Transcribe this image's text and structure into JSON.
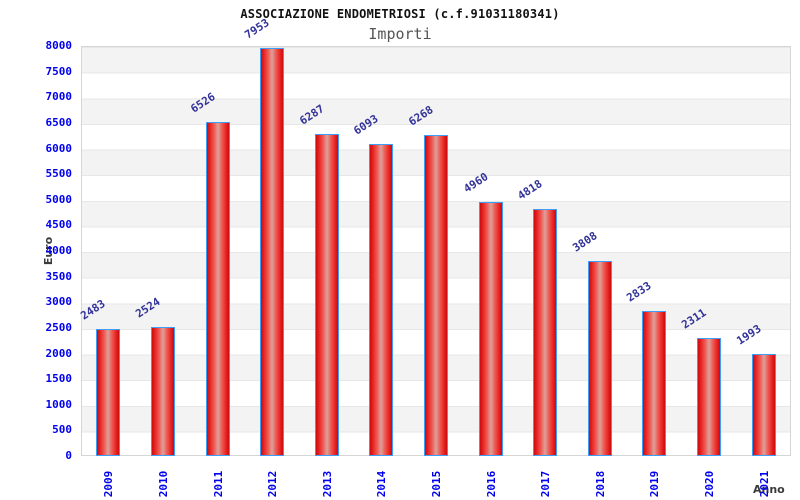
{
  "chart_data": {
    "type": "bar",
    "title": "ASSOCIAZIONE ENDOMETRIOSI (c.f.91031180341)",
    "subtitle": "Importi",
    "xlabel": "Anno",
    "ylabel": "Euro",
    "categories": [
      "2009",
      "2010",
      "2011",
      "2012",
      "2013",
      "2014",
      "2015",
      "2016",
      "2017",
      "2018",
      "2019",
      "2020",
      "2021"
    ],
    "values": [
      2483,
      2524,
      6526,
      7953,
      6287,
      6093,
      6268,
      4960,
      4818,
      3808,
      2833,
      2311,
      1993
    ],
    "value_labels": [
      "2483",
      "2524",
      "6526",
      "7953",
      "6287",
      "6093",
      "6268",
      "4960",
      "4818",
      "3808",
      "2833",
      "2311",
      "1993"
    ],
    "yticks": [
      "0",
      "500",
      "1000",
      "1500",
      "2000",
      "2500",
      "3000",
      "3500",
      "4000",
      "4500",
      "5000",
      "5500",
      "6000",
      "6500",
      "7000",
      "7500",
      "8000"
    ],
    "ylim": [
      0,
      8000
    ],
    "ytick_step": 500,
    "grid": "alternating horizontal bands every 500",
    "legend": "none",
    "colors": {
      "tick_label": "#0000ee",
      "value_label": "#333399",
      "bar_edge": "#3e9ef7",
      "bar_dark": "#c90c0c",
      "bar_mid": "#ee5a52",
      "bar_light": "#dda09c",
      "band_gray": "#f3f3f3",
      "band_white": "#ffffff",
      "plot_border": "#d6d6d6",
      "axis_title": "#3a3a3a",
      "title": "#111111",
      "subtitle": "#555555"
    }
  }
}
